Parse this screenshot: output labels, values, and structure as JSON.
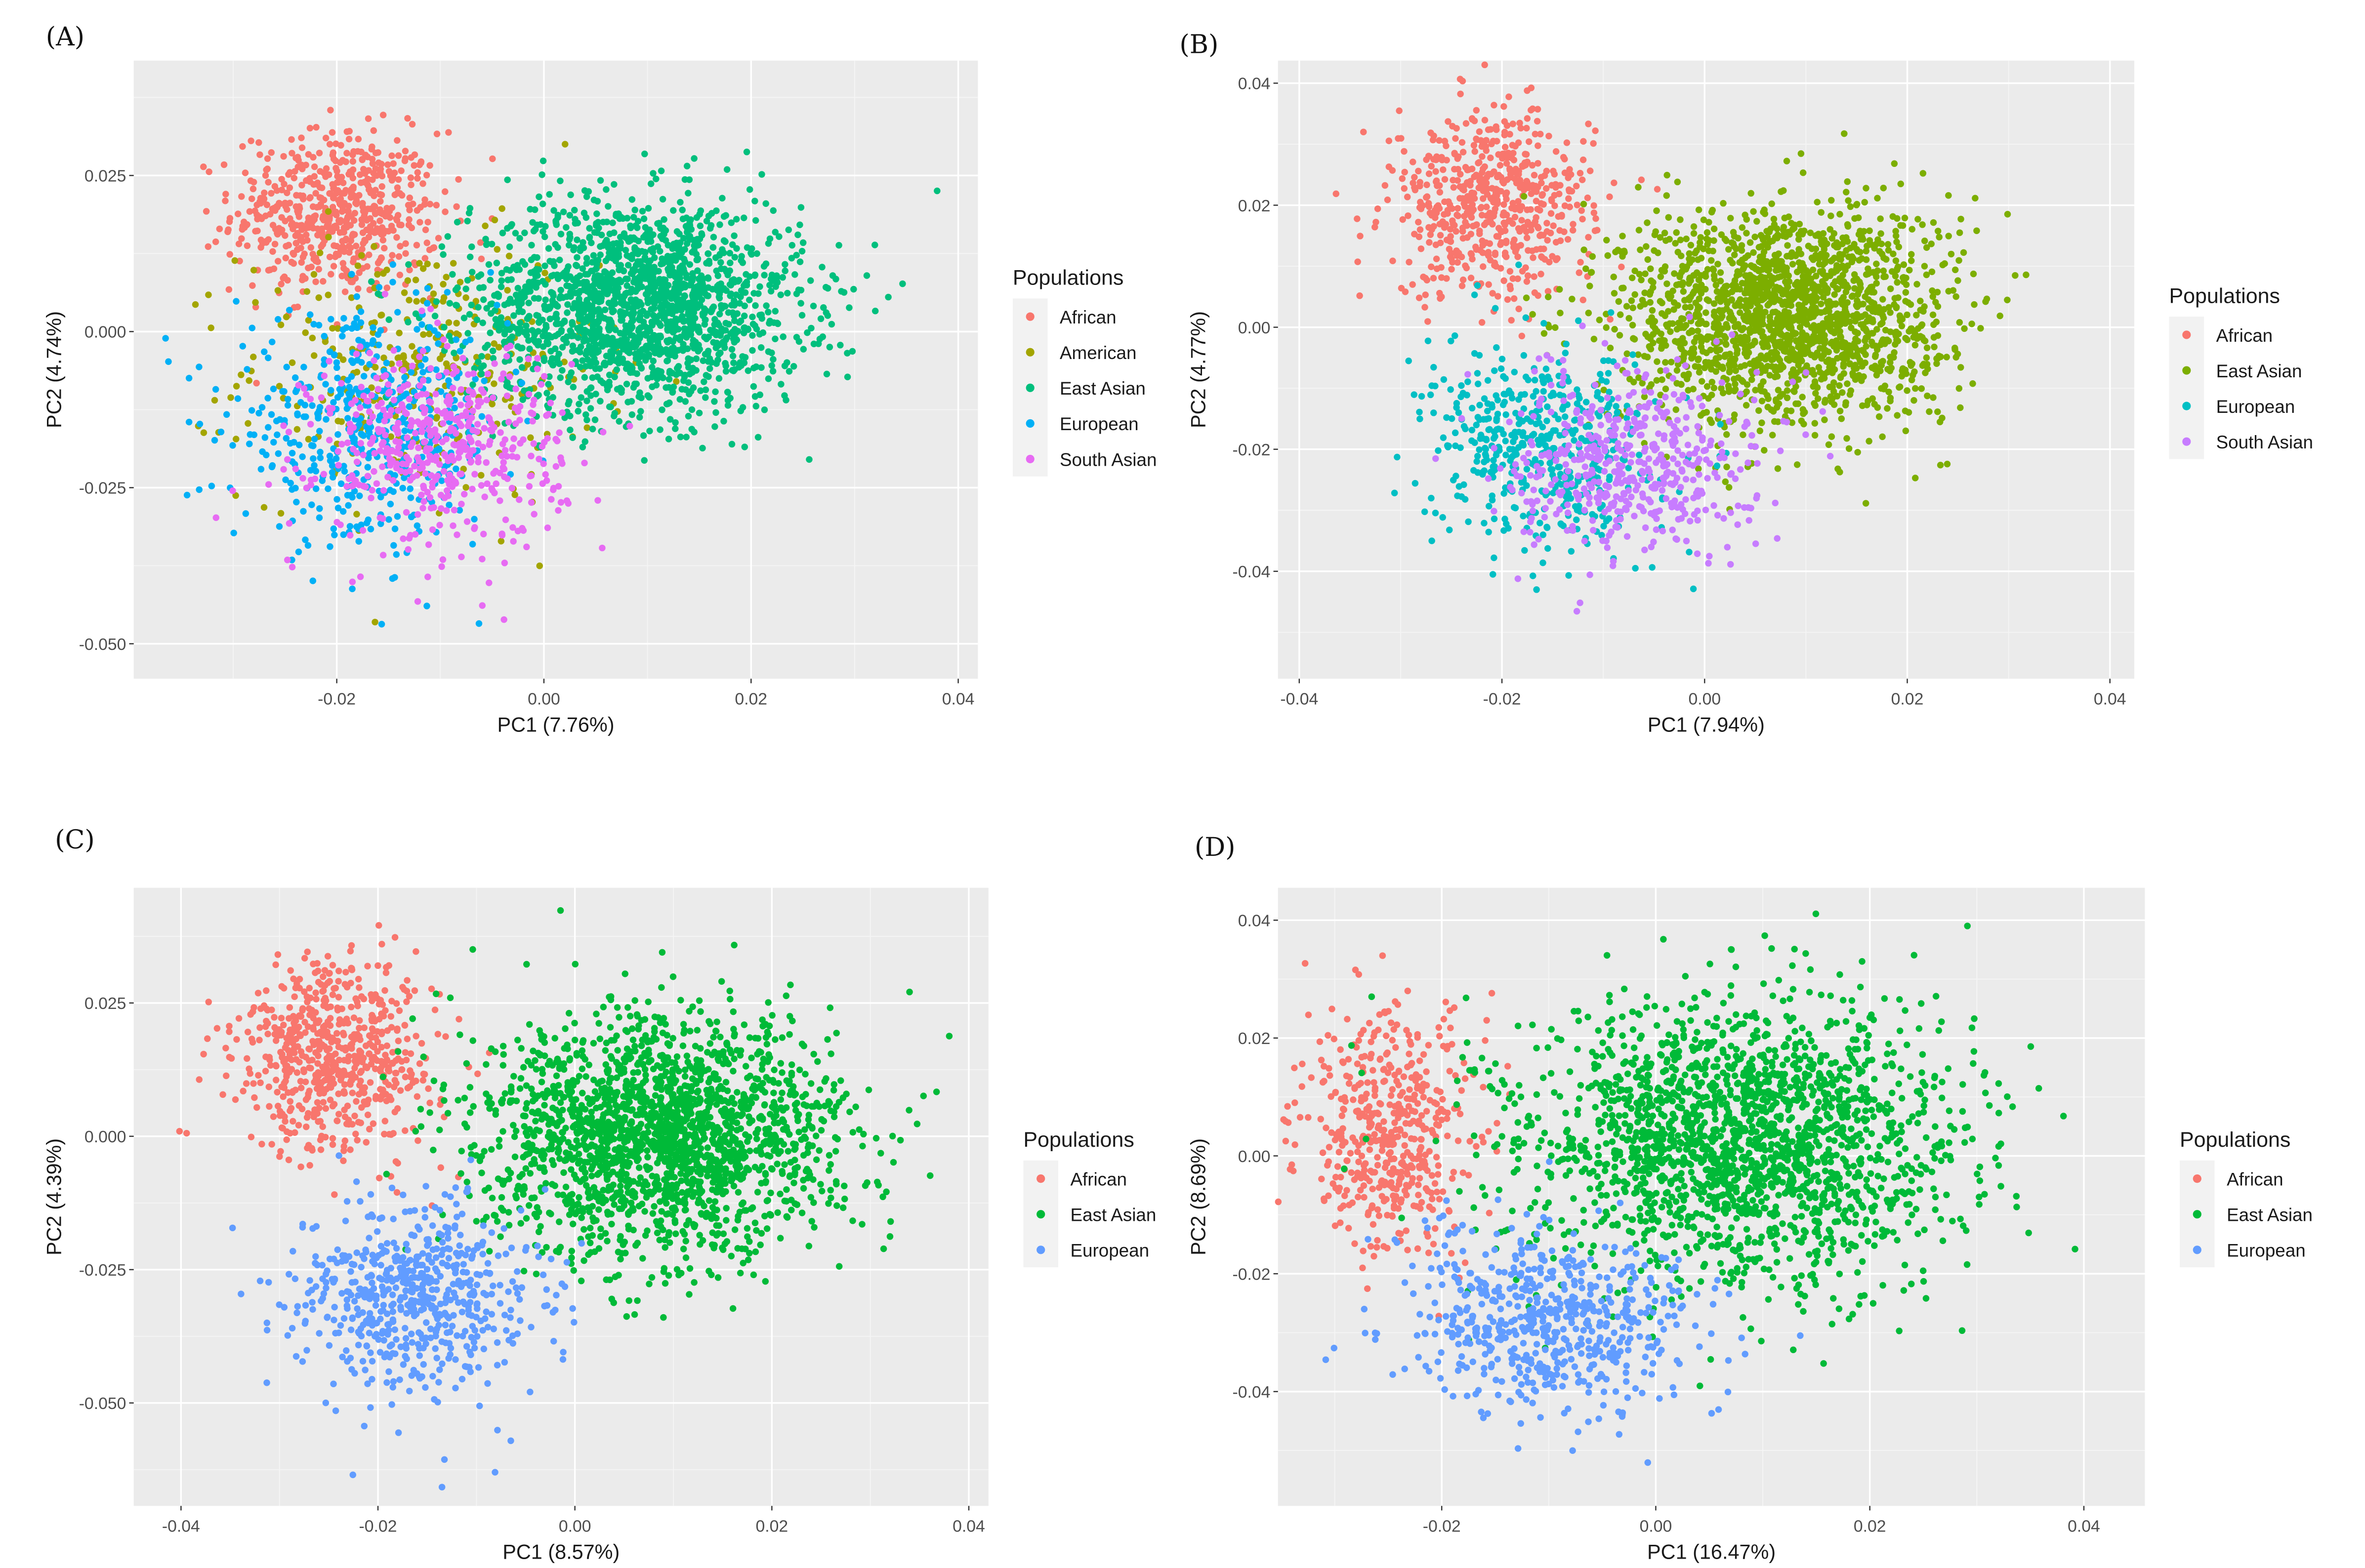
{
  "chart_data": [
    {
      "panel_label": "(A)",
      "type": "scatter",
      "xlabel": "PC1 (7.76%)",
      "ylabel": "PC2 (4.74%)",
      "xlim": [
        -0.0396,
        0.0419
      ],
      "ylim": [
        -0.0556,
        0.0434
      ],
      "xticks": [
        -0.02,
        0.0,
        0.02,
        0.04
      ],
      "xtick_labels": [
        "-0.02",
        "0.00",
        "0.02",
        "0.04"
      ],
      "yticks": [
        -0.05,
        -0.025,
        0.0,
        0.025
      ],
      "ytick_labels": [
        "-0.050",
        "-0.025",
        "0.000",
        "0.025"
      ],
      "grid": true,
      "legend_title": "Populations",
      "legend_placement": "right",
      "series": [
        {
          "name": "African",
          "color": "#F8766D",
          "center": [
            -0.02,
            0.019
          ],
          "sd": [
            0.005,
            0.0065
          ],
          "n": 600
        },
        {
          "name": "American",
          "color": "#A3A500",
          "center": [
            -0.012,
            -0.006
          ],
          "sd": [
            0.0085,
            0.0105
          ],
          "n": 320
        },
        {
          "name": "East Asian",
          "color": "#00BF7D",
          "center": [
            0.009,
            0.004
          ],
          "sd": [
            0.008,
            0.0085
          ],
          "n": 1800
        },
        {
          "name": "European",
          "color": "#00B0F6",
          "center": [
            -0.017,
            -0.016
          ],
          "sd": [
            0.0065,
            0.009
          ],
          "n": 500
        },
        {
          "name": "South Asian",
          "color": "#E76BF3",
          "center": [
            -0.01,
            -0.018
          ],
          "sd": [
            0.006,
            0.008
          ],
          "n": 500
        }
      ]
    },
    {
      "panel_label": "(B)",
      "type": "scatter",
      "xlabel": "PC1 (7.94%)",
      "ylabel": "PC2 (4.77%)",
      "xlim": [
        -0.0421,
        0.0424
      ],
      "ylim": [
        -0.0576,
        0.0437
      ],
      "xticks": [
        -0.04,
        -0.02,
        0.0,
        0.02,
        0.04
      ],
      "xtick_labels": [
        "-0.04",
        "-0.02",
        "0.00",
        "0.02",
        "0.04"
      ],
      "yticks": [
        -0.04,
        -0.02,
        0.0,
        0.02,
        0.04
      ],
      "ytick_labels": [
        "-0.04",
        "-0.02",
        "0.00",
        "0.02",
        "0.04"
      ],
      "grid": true,
      "legend_title": "Populations",
      "legend_placement": "right",
      "series": [
        {
          "name": "African",
          "color": "#F8766D",
          "center": [
            -0.021,
            0.02
          ],
          "sd": [
            0.005,
            0.0075
          ],
          "n": 600
        },
        {
          "name": "East Asian",
          "color": "#7CAE00",
          "center": [
            0.008,
            0.002
          ],
          "sd": [
            0.008,
            0.009
          ],
          "n": 1800
        },
        {
          "name": "European",
          "color": "#00BFC4",
          "center": [
            -0.016,
            -0.02
          ],
          "sd": [
            0.0055,
            0.008
          ],
          "n": 500
        },
        {
          "name": "South Asian",
          "color": "#C77CFF",
          "center": [
            -0.007,
            -0.022
          ],
          "sd": [
            0.006,
            0.0075
          ],
          "n": 500
        }
      ]
    },
    {
      "panel_label": "(C)",
      "type": "scatter",
      "xlabel": "PC1 (8.57%)",
      "ylabel": "PC2 (4.39%)",
      "xlim": [
        -0.0448,
        0.042
      ],
      "ylim": [
        -0.0693,
        0.0466
      ],
      "xticks": [
        -0.04,
        -0.02,
        0.0,
        0.02,
        0.04
      ],
      "xtick_labels": [
        "-0.04",
        "-0.02",
        "0.00",
        "0.02",
        "0.04"
      ],
      "yticks": [
        -0.05,
        -0.025,
        0.0,
        0.025
      ],
      "ytick_labels": [
        "-0.050",
        "-0.025",
        "0.000",
        "0.025"
      ],
      "grid": true,
      "legend_title": "Populations",
      "legend_placement": "right",
      "series": [
        {
          "name": "African",
          "color": "#F8766D",
          "center": [
            -0.024,
            0.015
          ],
          "sd": [
            0.005,
            0.009
          ],
          "n": 650
        },
        {
          "name": "East Asian",
          "color": "#00BA38",
          "center": [
            0.009,
            0.0
          ],
          "sd": [
            0.009,
            0.011
          ],
          "n": 2000
        },
        {
          "name": "European",
          "color": "#619CFF",
          "center": [
            -0.016,
            -0.03
          ],
          "sd": [
            0.006,
            0.009
          ],
          "n": 600
        }
      ]
    },
    {
      "panel_label": "(D)",
      "type": "scatter",
      "xlabel": "PC1 (16.47%)",
      "ylabel": "PC2 (8.69%)",
      "xlim": [
        -0.0353,
        0.0457
      ],
      "ylim": [
        -0.0594,
        0.0455
      ],
      "xticks": [
        -0.02,
        0.0,
        0.02,
        0.04
      ],
      "xtick_labels": [
        "-0.02",
        "0.00",
        "0.02",
        "0.04"
      ],
      "yticks": [
        -0.04,
        -0.02,
        0.0,
        0.02,
        0.04
      ],
      "ytick_labels": [
        "-0.04",
        "-0.02",
        "0.00",
        "0.02",
        "0.04"
      ],
      "grid": true,
      "legend_title": "Populations",
      "legend_placement": "right",
      "series": [
        {
          "name": "African",
          "color": "#F8766D",
          "center": [
            -0.025,
            0.004
          ],
          "sd": [
            0.004,
            0.01
          ],
          "n": 500
        },
        {
          "name": "East Asian",
          "color": "#00BA38",
          "center": [
            0.008,
            0.002
          ],
          "sd": [
            0.01,
            0.012
          ],
          "n": 2000
        },
        {
          "name": "European",
          "color": "#619CFF",
          "center": [
            -0.01,
            -0.028
          ],
          "sd": [
            0.007,
            0.008
          ],
          "n": 600
        }
      ]
    }
  ]
}
